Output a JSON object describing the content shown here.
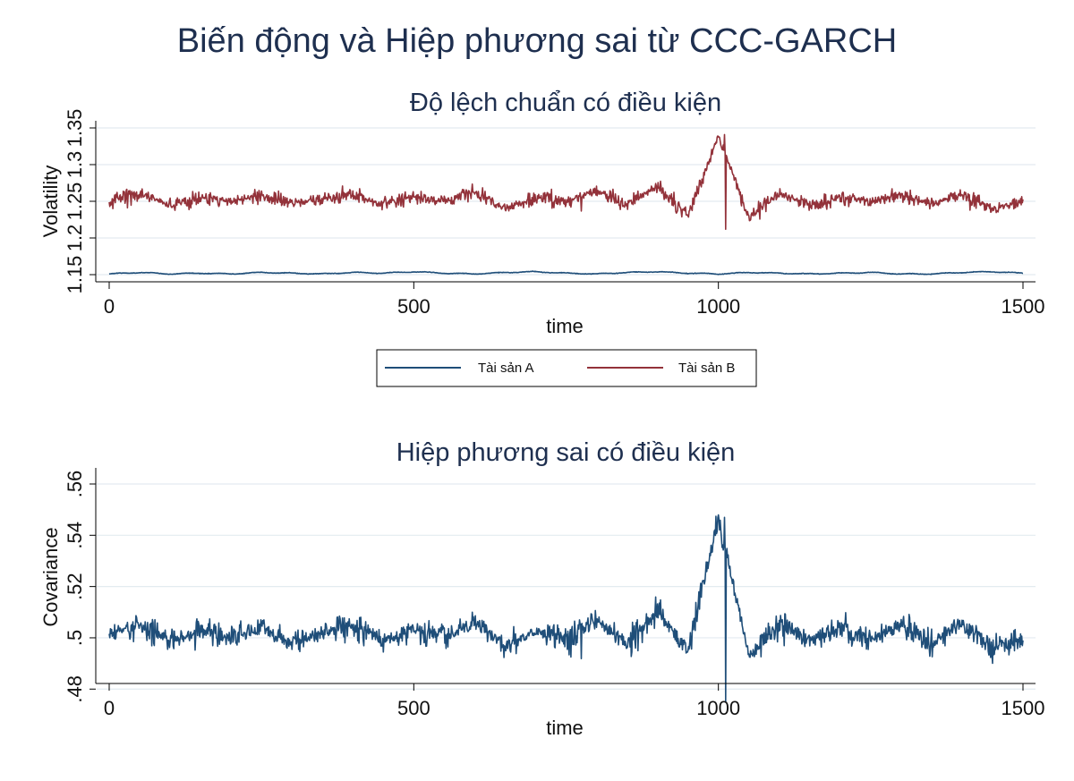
{
  "title": "Biến động và Hiệp phương sai từ CCC-GARCH",
  "colors": {
    "asset_a": "#1f4e79",
    "asset_b": "#93323a",
    "covariance": "#1f4e79",
    "grid": "#e3ebf0",
    "axis": "#000000"
  },
  "legend": {
    "items": [
      {
        "label": "Tài sản A",
        "color": "#1f4e79"
      },
      {
        "label": "Tài sản B",
        "color": "#93323a"
      }
    ]
  },
  "chart_data": [
    {
      "type": "line",
      "title": "Độ lệch chuẩn có điều kiện",
      "xlabel": "time",
      "ylabel": "Volatility",
      "xlim": [
        0,
        1500
      ],
      "ylim": [
        1.15,
        1.35
      ],
      "grid": true,
      "x_ticks": [
        "0",
        "500",
        "1000",
        "1500"
      ],
      "y_ticks": [
        "1.15",
        "1.2",
        "1.25",
        "1.3",
        "1.35"
      ],
      "legend_position": "bottom",
      "series": [
        {
          "name": "Tài sản A",
          "x": [
            0,
            50,
            100,
            150,
            200,
            250,
            300,
            350,
            400,
            450,
            500,
            550,
            600,
            650,
            700,
            750,
            800,
            850,
            900,
            950,
            1000,
            1050,
            1100,
            1150,
            1200,
            1250,
            1300,
            1350,
            1400,
            1450,
            1500
          ],
          "values": [
            1.151,
            1.153,
            1.151,
            1.152,
            1.151,
            1.153,
            1.152,
            1.151,
            1.153,
            1.152,
            1.154,
            1.152,
            1.151,
            1.153,
            1.154,
            1.152,
            1.151,
            1.153,
            1.154,
            1.152,
            1.151,
            1.153,
            1.152,
            1.151,
            1.152,
            1.153,
            1.151,
            1.151,
            1.153,
            1.154,
            1.152
          ]
        },
        {
          "name": "Tài sản B",
          "x": [
            0,
            50,
            100,
            150,
            200,
            250,
            300,
            350,
            400,
            450,
            500,
            550,
            600,
            650,
            700,
            750,
            800,
            850,
            900,
            950,
            1000,
            1050,
            1100,
            1150,
            1200,
            1250,
            1300,
            1350,
            1400,
            1450,
            1500
          ],
          "values": [
            1.25,
            1.26,
            1.245,
            1.255,
            1.25,
            1.258,
            1.248,
            1.252,
            1.26,
            1.245,
            1.255,
            1.25,
            1.262,
            1.24,
            1.255,
            1.25,
            1.265,
            1.245,
            1.27,
            1.23,
            1.34,
            1.228,
            1.26,
            1.245,
            1.255,
            1.25,
            1.258,
            1.245,
            1.26,
            1.24,
            1.25
          ],
          "extremes": {
            "max": 1.341,
            "min": 1.212
          }
        }
      ]
    },
    {
      "type": "line",
      "title": "Hiệp phương sai có điều kiện",
      "xlabel": "time",
      "ylabel": "Covariance",
      "xlim": [
        0,
        1500
      ],
      "ylim": [
        0.475,
        0.56
      ],
      "grid": true,
      "x_ticks": [
        "0",
        "500",
        "1000",
        "1500"
      ],
      "y_ticks": [
        ".48",
        ".5",
        ".52",
        ".54",
        ".56"
      ],
      "series": [
        {
          "name": "",
          "x": [
            0,
            50,
            100,
            150,
            200,
            250,
            300,
            350,
            400,
            450,
            500,
            550,
            600,
            650,
            700,
            750,
            800,
            850,
            900,
            950,
            1000,
            1050,
            1100,
            1150,
            1200,
            1250,
            1300,
            1350,
            1400,
            1450,
            1500
          ],
          "values": [
            0.501,
            0.505,
            0.499,
            0.503,
            0.5,
            0.504,
            0.498,
            0.502,
            0.505,
            0.499,
            0.503,
            0.5,
            0.506,
            0.497,
            0.503,
            0.5,
            0.507,
            0.498,
            0.51,
            0.495,
            0.547,
            0.493,
            0.505,
            0.499,
            0.503,
            0.5,
            0.505,
            0.498,
            0.506,
            0.496,
            0.5
          ],
          "extremes": {
            "max": 0.547,
            "min": 0.475
          }
        }
      ]
    }
  ]
}
